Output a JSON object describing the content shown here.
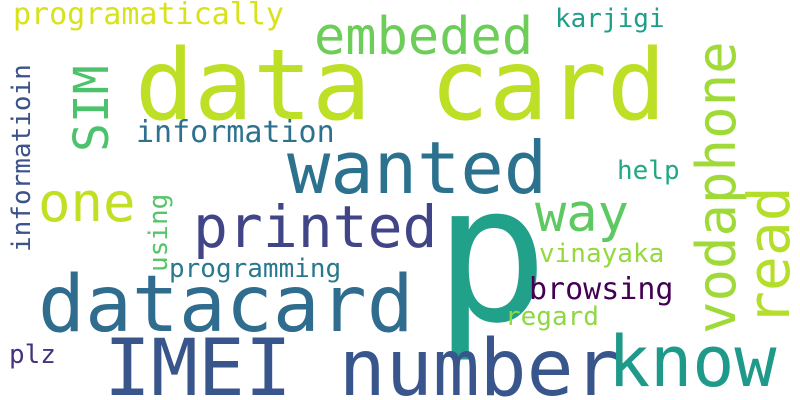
{
  "words": [
    {
      "text": "p",
      "color": "#21A08A"
    },
    {
      "text": "data card",
      "color": "#BDDF26"
    },
    {
      "text": "wanted",
      "color": "#2C718E"
    },
    {
      "text": "datacard",
      "color": "#2F6C8E"
    },
    {
      "text": "IMEI number",
      "color": "#39568C"
    },
    {
      "text": "know",
      "color": "#1F9A8A"
    },
    {
      "text": "vodaphone",
      "color": "#A0DA39"
    },
    {
      "text": "read",
      "color": "#B5DE2B"
    },
    {
      "text": "embeded",
      "color": "#6CCE59"
    },
    {
      "text": "printed",
      "color": "#414487"
    },
    {
      "text": "way",
      "color": "#5EC962"
    },
    {
      "text": "one",
      "color": "#C2DF23"
    },
    {
      "text": "SIM",
      "color": "#4CC26C"
    },
    {
      "text": "information",
      "color": "#2C728E"
    },
    {
      "text": "programatically",
      "color": "#D8E219"
    },
    {
      "text": "karjigi",
      "color": "#1F9E89"
    },
    {
      "text": "informatioin",
      "color": "#3B528B"
    },
    {
      "text": "help",
      "color": "#22A884"
    },
    {
      "text": "using",
      "color": "#54C568"
    },
    {
      "text": "vinayaka",
      "color": "#95D840"
    },
    {
      "text": "programming",
      "color": "#2A788E"
    },
    {
      "text": "browsing",
      "color": "#440154"
    },
    {
      "text": "regard",
      "color": "#8FD744"
    },
    {
      "text": "plz",
      "color": "#46337E"
    }
  ]
}
